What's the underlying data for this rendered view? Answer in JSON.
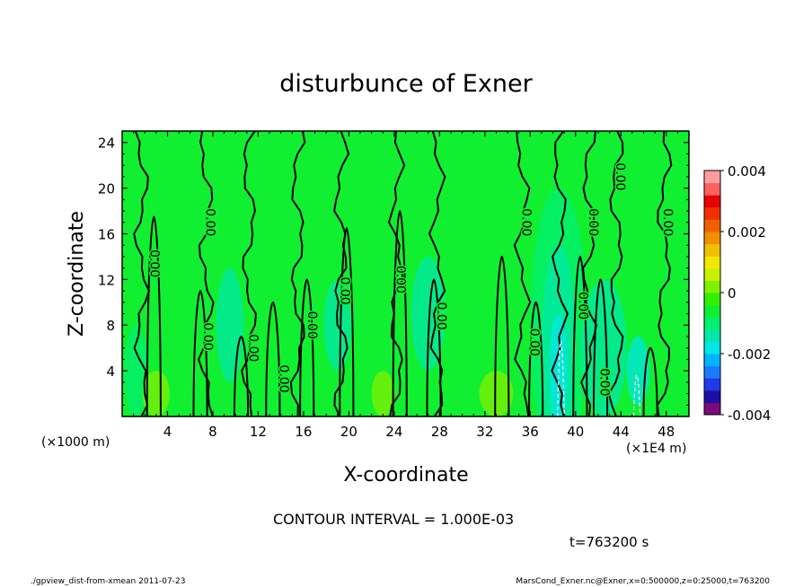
{
  "chart_data": {
    "type": "heatmap",
    "title": "disturbunce of Exner",
    "xlabel": "X-coordinate",
    "ylabel": "Z-coordinate",
    "x_unit_left": "(×1000 m)",
    "x_unit_right": "(×1E4 m)",
    "x_ticks": [
      "4",
      "8",
      "12",
      "16",
      "20",
      "24",
      "28",
      "32",
      "36",
      "40",
      "44",
      "48"
    ],
    "y_ticks": [
      "4",
      "8",
      "12",
      "16",
      "20",
      "24"
    ],
    "xlim": [
      0,
      50
    ],
    "ylim": [
      0,
      25
    ],
    "colorbar": {
      "labels": [
        "0.004",
        "0.002",
        "0",
        "-0.002",
        "-0.004"
      ],
      "range": [
        -0.004,
        0.004
      ],
      "colors": [
        "#7b0a7b",
        "#1c0fa8",
        "#1f3ae6",
        "#1a7cff",
        "#00b3ff",
        "#00e5e5",
        "#00e8a8",
        "#00f070",
        "#10f030",
        "#30f000",
        "#80f000",
        "#c8f000",
        "#f0e800",
        "#f0c000",
        "#f09000",
        "#f06000",
        "#f03000",
        "#e80000",
        "#ff6060",
        "#ff9ea0"
      ]
    },
    "contour_label": "0.00",
    "contour_interval_text": "CONTOUR INTERVAL = 1.000E-03",
    "time_text": "t=763200 s"
  },
  "footer": {
    "left": "./gpview_dist-from-xmean  2011-07-23",
    "right": "MarsCond_Exner.nc@Exner,x=0:500000,z=0:25000,t=763200"
  }
}
